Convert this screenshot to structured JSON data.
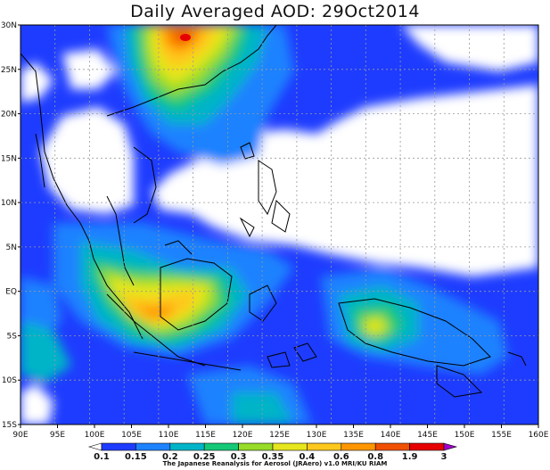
{
  "map": {
    "title": "Daily Averaged AOD: 29Oct2014",
    "lon_labels": [
      "90E",
      "95E",
      "100E",
      "105E",
      "110E",
      "115E",
      "120E",
      "125E",
      "130E",
      "135E",
      "140E",
      "145E",
      "150E",
      "155E",
      "160E"
    ],
    "lat_labels": [
      "30N",
      "25N",
      "20N",
      "15N",
      "10N",
      "5N",
      "EQ",
      "5S",
      "10S",
      "15S"
    ],
    "colorbar": {
      "levels": [
        "0.1",
        "0.15",
        "0.2",
        "0.25",
        "0.3",
        "0.35",
        "0.4",
        "0.6",
        "0.8",
        "1.9",
        "3"
      ],
      "colors": [
        "#ffffff",
        "#1e3cff",
        "#1e82ff",
        "#00b4c8",
        "#14c878",
        "#96dc28",
        "#e6e61e",
        "#ffc81e",
        "#ff9600",
        "#f05000",
        "#e60000",
        "#a000c8"
      ]
    },
    "credit": "The Japanese Reanalysis for Aerosol (JRAero) v1.0 MRI/KU RIAM"
  }
}
